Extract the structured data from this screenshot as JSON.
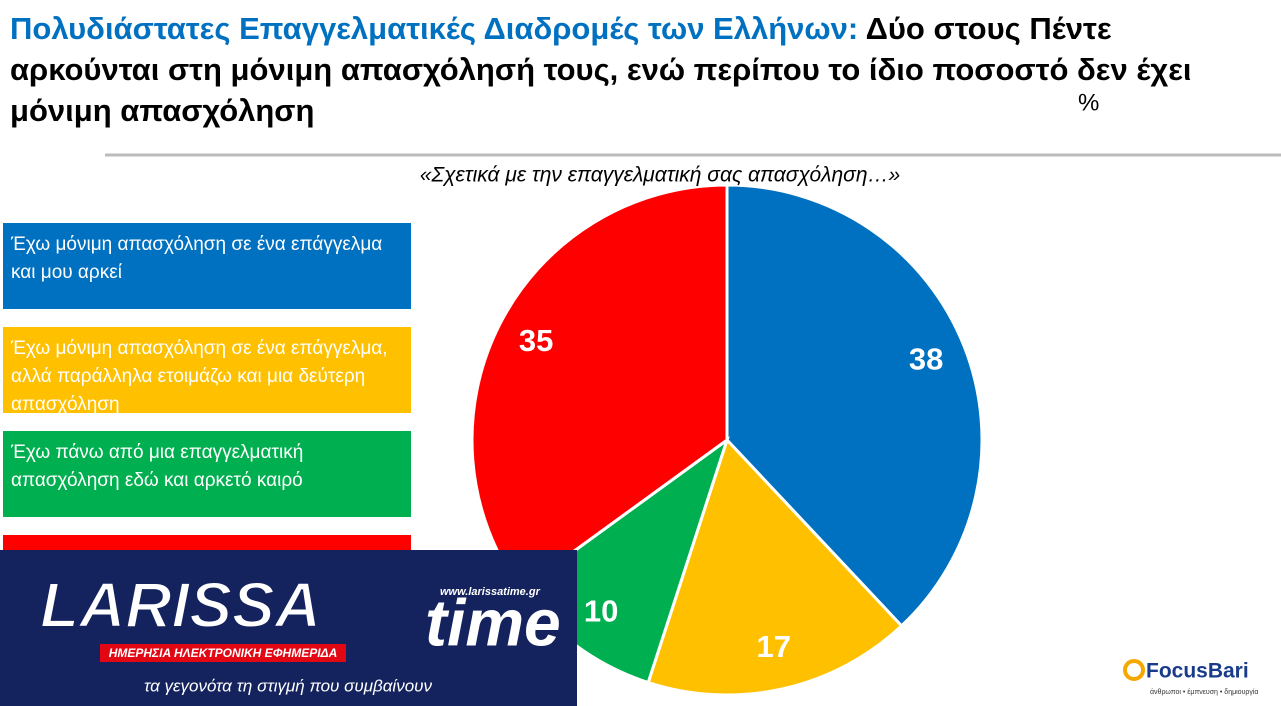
{
  "chart_data": {
    "type": "pie",
    "title_highlight": "Πολυδιάστατες Επαγγελματικές Διαδρομές των Ελλήνων:",
    "title": "Δύο στους Πέντε αρκούνται στη μόνιμη απασχόλησή τους, ενώ περίπου το ίδιο ποσοστό δεν έχει μόνιμη απασχόληση",
    "unit_label": "%",
    "subtitle": "«Σχετικά με την επαγγελματική σας απασχόληση…»",
    "categories": [
      "Έχω μόνιμη απασχόληση σε ένα επάγγελμα και μου αρκεί",
      "Έχω μόνιμη απασχόληση σε ένα επάγγελμα, αλλά παράλληλα ετοιμάζω και μια δεύτερη απασχόληση",
      "Έχω πάνω από μια επαγγελματική απασχόληση εδώ και αρκετό καιρό",
      null
    ],
    "values": [
      38,
      17,
      10,
      35
    ],
    "colors": [
      "#0070c0",
      "#ffc000",
      "#00b050",
      "#ff0000"
    ]
  },
  "watermark": {
    "brand_a": "LARISSA",
    "brand_b": "time",
    "url": "www.larissatime.gr",
    "tagline": "ΗΜΕΡΗΣΙΑ ΗΛΕΚΤΡΟΝΙΚΗ ΕΦΗΜΕΡΙΔΑ",
    "motto": "τα γεγονότα τη στιγμή που συμβαίνουν"
  },
  "source": {
    "name": "FocusBari",
    "motto": "άνθρωποι • έμπνευση • δημιουργία"
  }
}
